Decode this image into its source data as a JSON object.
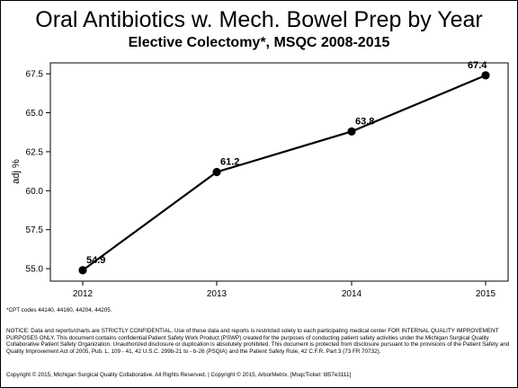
{
  "chart_data": {
    "type": "line",
    "title": "Oral Antibiotics w. Mech. Bowel Prep by Year",
    "subtitle": "Elective Colectomy*, MSQC 2008-2015",
    "ylabel": "adj %",
    "xlabel": "",
    "x": [
      2012,
      2013,
      2014,
      2015
    ],
    "x_tick_labels": [
      "2012",
      "2013",
      "2014",
      "2015"
    ],
    "values": [
      54.9,
      61.2,
      63.8,
      67.4
    ],
    "data_labels": [
      "54.9",
      "61.2",
      "63.8",
      "67.4"
    ],
    "ylim": [
      54.2,
      68.2
    ],
    "y_ticks": [
      55.0,
      57.5,
      60.0,
      62.5,
      65.0,
      67.5
    ],
    "y_tick_labels": [
      "55.0",
      "57.5",
      "60.0",
      "62.5",
      "65.0",
      "67.5"
    ],
    "grid": false,
    "line_color": "#000000",
    "marker": "circle"
  },
  "footnote": "*CPT codes 44140, 44160, 44204, 44205.",
  "notice": "NOTICE: Data and reports/charts are STRICTLY CONFIDENTIAL. Use of these data and reports is restricted solely to each participating medical center FOR INTERNAL QUALITY IMPROVEMENT PURPOSES ONLY. This document contains confidential Patient Safety Work Product (PSWP) created for the purposes of conducting patient safety activities under the Michigan Surgical Quality Collaborative Patient Safety Organization. Unauthorized disclosure or duplication is absolutely prohibited. This document is protected from disclosure pursuant to the provisions of the Patient Safety and Quality Improvement Act of 2005, Pub. L. 109 - 41, 42 U.S.C. 299b-21 to - b-26 (PSQIA) and the Patient Safety Rule, 42 C.F.R. Part 3 (73 FR 70732).",
  "copyright": "Copyright © 2015, Michigan Surgical Quality Collaborative. All Rights Reserved. | Copyright © 2015, ArborMetrix. [MsqcTicket: t857e3111]"
}
